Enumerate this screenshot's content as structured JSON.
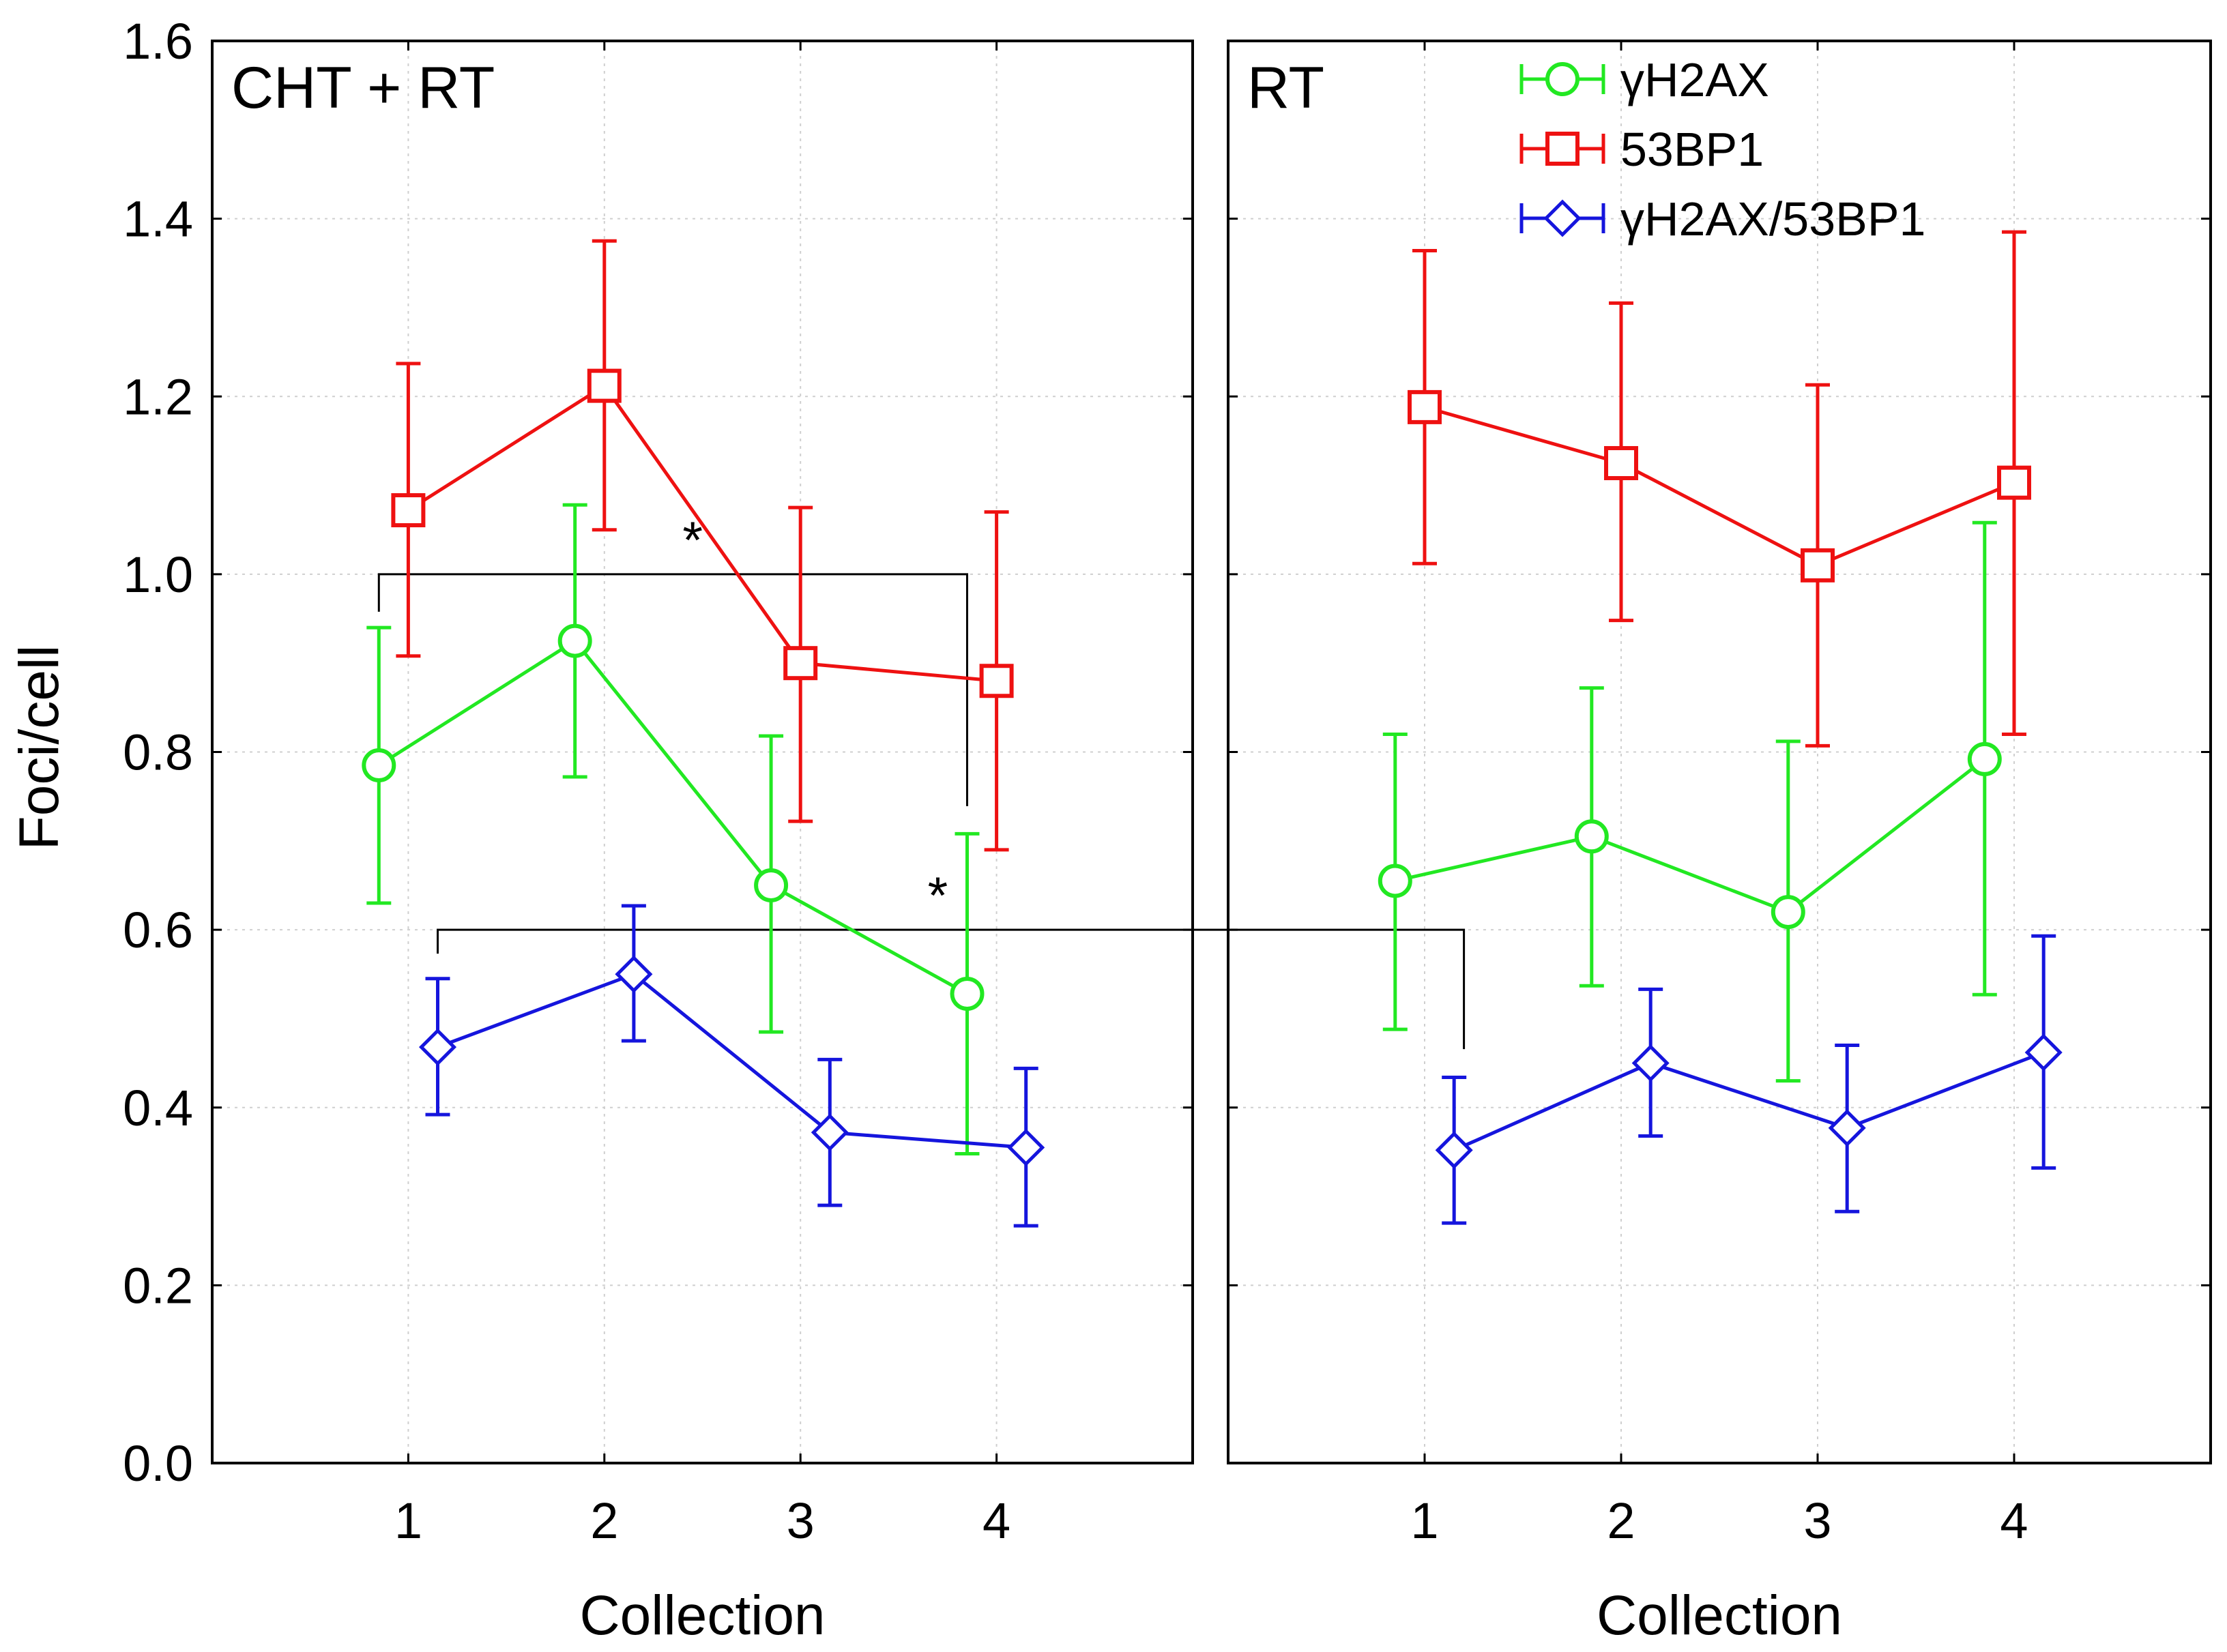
{
  "chart_data": {
    "type": "line",
    "ylabel": "Foci/cell",
    "ylim": [
      0,
      1.6
    ],
    "yticks": [
      "0.0",
      "0.2",
      "0.4",
      "0.6",
      "0.8",
      "1.0",
      "1.2",
      "1.4",
      "1.6"
    ],
    "xlim": [
      0,
      5
    ],
    "xticks": [
      "1",
      "2",
      "3",
      "4"
    ],
    "grid": true,
    "legend": {
      "position": "top-right",
      "entries": [
        "γH2AX",
        "53BP1",
        "γH2AX/53BP1"
      ]
    },
    "series_styles": [
      {
        "name": "γH2AX",
        "color": "#22e822",
        "marker": "circle",
        "offset": -0.15
      },
      {
        "name": "53BP1",
        "color": "#ee1111",
        "marker": "square",
        "offset": 0.0
      },
      {
        "name": "γH2AX/53BP1",
        "color": "#1515dd",
        "marker": "diamond",
        "offset": 0.15
      }
    ],
    "panels": [
      {
        "title": "CHT + RT",
        "xlabel": "Collection",
        "series": [
          {
            "name": "γH2AX",
            "x": [
              1,
              2,
              3,
              4
            ],
            "values": [
              0.785,
              0.925,
              0.65,
              0.528
            ],
            "lower": [
              0.63,
              0.772,
              0.485,
              0.348
            ],
            "upper": [
              0.94,
              1.078,
              0.818,
              0.708
            ]
          },
          {
            "name": "53BP1",
            "x": [
              1,
              2,
              3,
              4
            ],
            "values": [
              1.072,
              1.212,
              0.9,
              0.88
            ],
            "lower": [
              0.908,
              1.05,
              0.722,
              0.69
            ],
            "upper": [
              1.237,
              1.375,
              1.075,
              1.07
            ]
          },
          {
            "name": "γH2AX/53BP1",
            "x": [
              1,
              2,
              3,
              4
            ],
            "values": [
              0.468,
              0.55,
              0.372,
              0.355
            ],
            "lower": [
              0.392,
              0.475,
              0.29,
              0.267
            ],
            "upper": [
              0.545,
              0.627,
              0.454,
              0.444
            ]
          }
        ]
      },
      {
        "title": "RT",
        "xlabel": "Collection",
        "series": [
          {
            "name": "γH2AX",
            "x": [
              1,
              2,
              3,
              4
            ],
            "values": [
              0.655,
              0.705,
              0.62,
              0.792
            ],
            "lower": [
              0.488,
              0.537,
              0.43,
              0.527
            ],
            "upper": [
              0.82,
              0.872,
              0.812,
              1.058
            ]
          },
          {
            "name": "53BP1",
            "x": [
              1,
              2,
              3,
              4
            ],
            "values": [
              1.188,
              1.125,
              1.01,
              1.103
            ],
            "lower": [
              1.012,
              0.948,
              0.807,
              0.82
            ],
            "upper": [
              1.364,
              1.305,
              1.213,
              1.385
            ]
          },
          {
            "name": "γH2AX/53BP1",
            "x": [
              1,
              2,
              3,
              4
            ],
            "values": [
              0.352,
              0.45,
              0.377,
              0.462
            ],
            "lower": [
              0.27,
              0.368,
              0.283,
              0.332
            ],
            "upper": [
              0.434,
              0.533,
              0.47,
              0.593
            ]
          }
        ]
      }
    ],
    "annotations": [
      {
        "label": "*",
        "y": 1.0,
        "from": {
          "panel": 0,
          "x": 0.85
        },
        "to": {
          "panel": 0,
          "x": 3.85
        },
        "star_at": {
          "panel": 0,
          "x": 2.45,
          "y": 1.04
        }
      },
      {
        "label": "*",
        "y": 0.6,
        "from": {
          "panel": 0,
          "x": 1.15
        },
        "to": {
          "panel": 1,
          "x": 1.2
        },
        "star_at": {
          "panel": 0,
          "x": 3.7,
          "y": 0.64
        }
      }
    ]
  }
}
